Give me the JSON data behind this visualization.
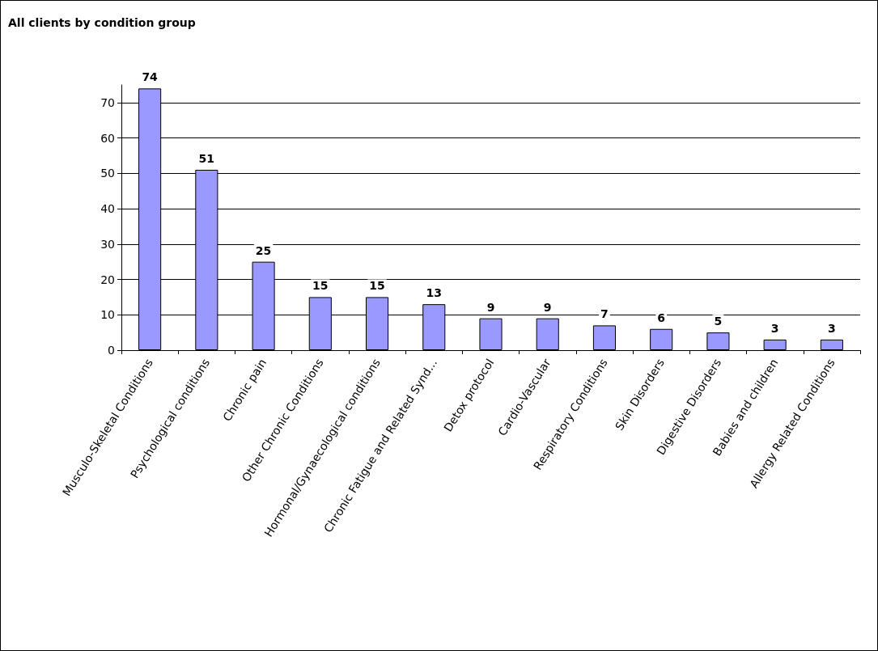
{
  "chart_data": {
    "type": "bar",
    "title": "All clients by condition group",
    "categories": [
      "Musculo-Skeletal Conditions",
      "Psychological conditions",
      "Chronic pain",
      "Other Chronic Conditions",
      "Hormonal/Gynaecological conditions",
      "Chronic Fatigue and Related Synd...",
      "Detox protocol",
      "Cardio-Vascular",
      "Respiratory Conditions",
      "Skin Disorders",
      "Digestive Disorders",
      "Babies and children",
      "Allergy Related Conditions"
    ],
    "values": [
      74,
      51,
      25,
      15,
      15,
      13,
      9,
      9,
      7,
      6,
      5,
      3,
      3
    ],
    "color": "#9999ff",
    "ylim": [
      0,
      75
    ],
    "yticks": [
      0,
      10,
      20,
      30,
      40,
      50,
      60,
      70
    ],
    "grid": "y",
    "data_labels": true
  }
}
